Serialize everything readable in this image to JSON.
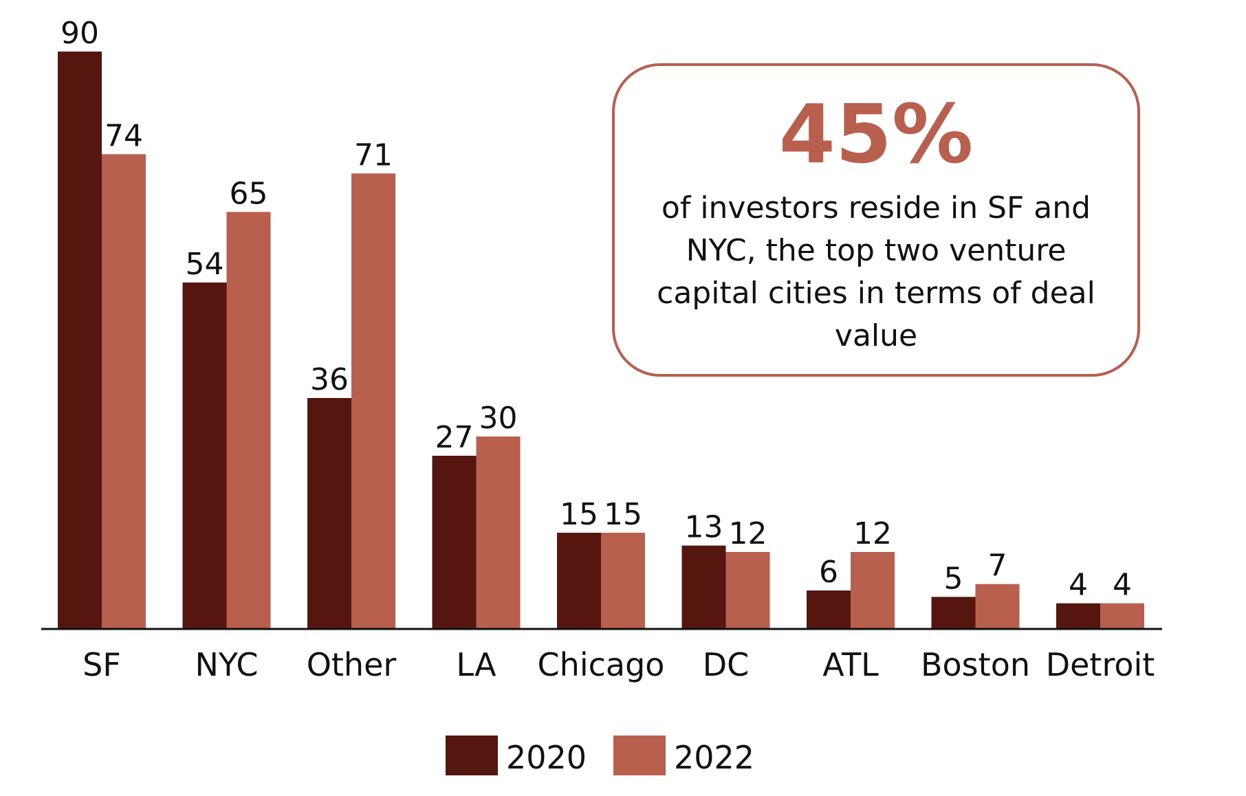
{
  "chart_data": {
    "type": "bar",
    "title": "",
    "xlabel": "",
    "ylabel": "",
    "ylim": [
      0,
      90
    ],
    "categories": [
      "SF",
      "NYC",
      "Other",
      "LA",
      "Chicago",
      "DC",
      "ATL",
      "Boston",
      "Detroit"
    ],
    "series": [
      {
        "name": "2020",
        "color": "#551610",
        "values": [
          90,
          54,
          36,
          27,
          15,
          13,
          6,
          5,
          4
        ]
      },
      {
        "name": "2022",
        "color": "#b85f4e",
        "values": [
          74,
          65,
          71,
          30,
          15,
          12,
          12,
          7,
          4
        ]
      }
    ],
    "legend_position": "bottom",
    "grid": false
  },
  "callout": {
    "stat": "45%",
    "text": "of investors reside in SF and NYC, the top two venture capital cities in terms of deal value",
    "color": "#b85f4e"
  }
}
